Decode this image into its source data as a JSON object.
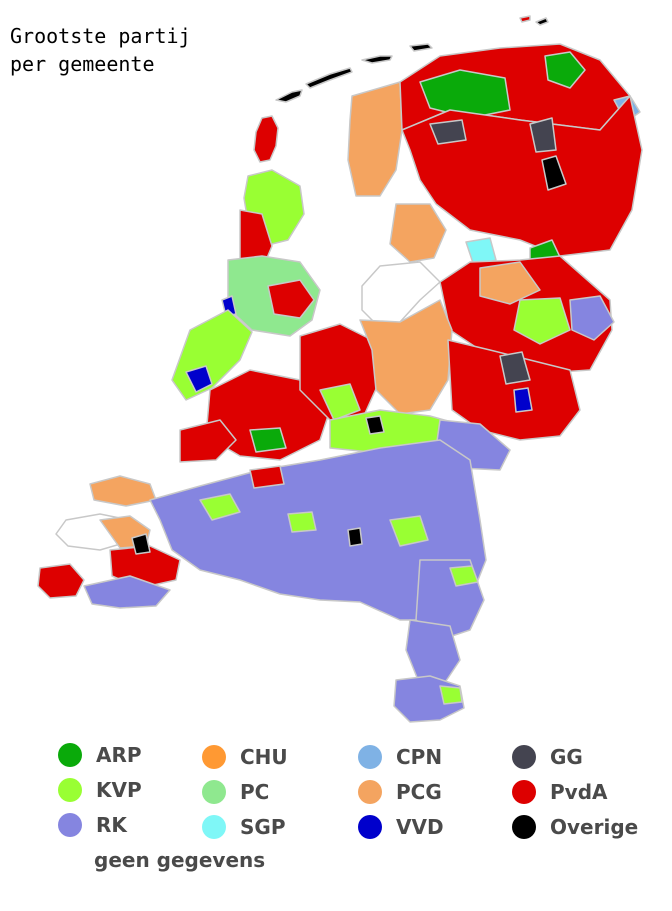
{
  "title": [
    "Grootste partij",
    "per gemeente"
  ],
  "colors": {
    "ARP": "#0aaa0a",
    "KVP": "#99ff33",
    "RK": "#8585e0",
    "CHU": "#ff9933",
    "PC": "#8fe88f",
    "SGP": "#7ff7f7",
    "CPN": "#7fb2e5",
    "PCG": "#f4a460",
    "VVD": "#0000cc",
    "GG": "#444450",
    "PvdA": "#dd0000",
    "Overige": "#000000",
    "nodata": "#ffffff",
    "border": "#c8c8c8"
  },
  "legend": [
    {
      "party": "ARP",
      "color_key": "ARP"
    },
    {
      "party": "KVP",
      "color_key": "KVP"
    },
    {
      "party": "RK",
      "color_key": "RK"
    },
    {
      "party": "CHU",
      "color_key": "CHU"
    },
    {
      "party": "PC",
      "color_key": "PC"
    },
    {
      "party": "SGP",
      "color_key": "SGP"
    },
    {
      "party": "CPN",
      "color_key": "CPN"
    },
    {
      "party": "PCG",
      "color_key": "PCG"
    },
    {
      "party": "VVD",
      "color_key": "VVD"
    },
    {
      "party": "GG",
      "color_key": "GG"
    },
    {
      "party": "PvdA",
      "color_key": "PvdA"
    },
    {
      "party": "Overige",
      "color_key": "Overige"
    }
  ],
  "nodata_label": "geen gegevens"
}
